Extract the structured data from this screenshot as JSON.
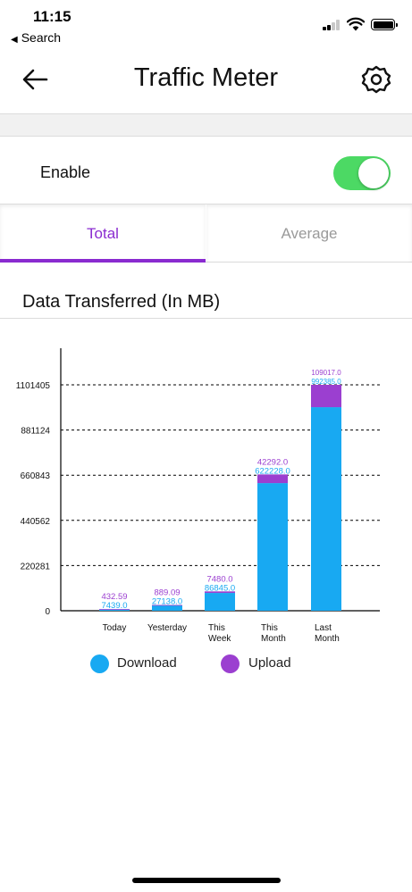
{
  "status_bar": {
    "time": "11:15",
    "back_app_label": "Search",
    "back_app_glyph": "◀"
  },
  "header": {
    "title": "Traffic Meter",
    "back_icon": "arrow-left-icon",
    "settings_icon": "gear-icon"
  },
  "enable": {
    "label": "Enable",
    "checked": true,
    "toggle_color": "#4cd964"
  },
  "tabs": [
    {
      "label": "Total",
      "active": true
    },
    {
      "label": "Average",
      "active": false
    }
  ],
  "accent_color": "#8a2bd0",
  "section_title": "Data Transferred (In MB)",
  "chart_data": {
    "type": "bar",
    "stacked": true,
    "categories": [
      [
        "Today"
      ],
      [
        "Yesterday"
      ],
      [
        "This",
        "Week"
      ],
      [
        "This",
        "Month"
      ],
      [
        "Last",
        "Month"
      ]
    ],
    "series": [
      {
        "name": "Download",
        "color": "#18a9f2",
        "values": [
          7439.0,
          27138.0,
          86845.0,
          622228.0,
          992385.0
        ],
        "labels": [
          "7439.0",
          "27138.0",
          "86845.0",
          "622228.0",
          "992385.0"
        ]
      },
      {
        "name": "Upload",
        "color": "#9b3fd0",
        "values": [
          432.59,
          889.09,
          7480.0,
          42292.0,
          109017.0
        ],
        "labels": [
          "432.59",
          "889.09",
          "7480.0",
          "42292.0",
          "109017.0"
        ]
      }
    ],
    "yticks": [
      0,
      220281,
      440562,
      660843,
      881124,
      1101405
    ],
    "ylim": [
      0,
      1101405
    ],
    "grid": "dashed horizontal",
    "legend_position": "bottom"
  },
  "legend": [
    {
      "label": "Download",
      "color": "#18a9f2"
    },
    {
      "label": "Upload",
      "color": "#9b3fd0"
    }
  ]
}
